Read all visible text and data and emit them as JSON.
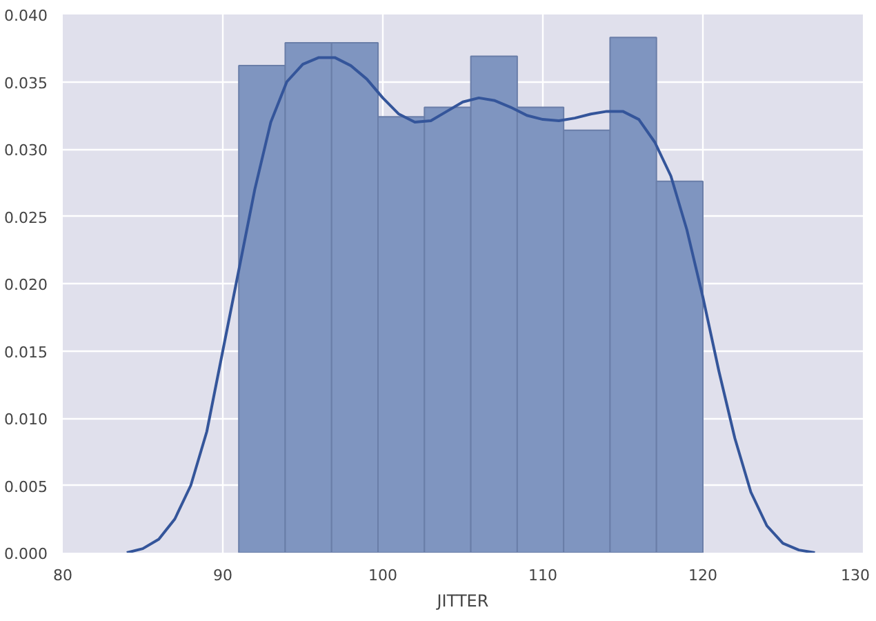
{
  "chart_data": {
    "type": "histogram",
    "xlabel": "JITTER",
    "xlim": [
      80,
      130
    ],
    "xticks": [
      80,
      90,
      100,
      110,
      120,
      130
    ],
    "ylim": [
      0,
      0.04
    ],
    "yticks": [
      {
        "value": 0,
        "label": "0.000"
      },
      {
        "value": 0.005,
        "label": "0.005"
      },
      {
        "value": 0.01,
        "label": "0.010"
      },
      {
        "value": 0.015,
        "label": "0.015"
      },
      {
        "value": 0.02,
        "label": "0.020"
      },
      {
        "value": 0.025,
        "label": "0.025"
      },
      {
        "value": 0.03,
        "label": "0.030"
      },
      {
        "value": 0.035,
        "label": "0.035"
      },
      {
        "value": 0.04,
        "label": "0.040"
      }
    ],
    "grid": true,
    "series": [
      {
        "color": "#7f95c0",
        "bins": [
          91,
          93.9,
          96.8,
          99.7,
          102.6,
          105.5,
          108.4,
          111.3,
          114.2,
          117.1,
          120
        ],
        "values": [
          0.0362,
          0.0379,
          0.0379,
          0.0324,
          0.0331,
          0.0369,
          0.0331,
          0.0314,
          0.0383,
          0.0276
        ]
      },
      {
        "type": "line",
        "color": "#34559a",
        "x": [
          84,
          85,
          86,
          87,
          88,
          89,
          90,
          91,
          92,
          93,
          94,
          95,
          96,
          97,
          98,
          99,
          100,
          101,
          102,
          103,
          104,
          105,
          106,
          107,
          108,
          109,
          110,
          111,
          112,
          113,
          114,
          115,
          116,
          117,
          118,
          119,
          120,
          121,
          122,
          123,
          124,
          125,
          126,
          127
        ],
        "values": [
          0,
          0.0003,
          0.001,
          0.0025,
          0.005,
          0.009,
          0.015,
          0.021,
          0.027,
          0.032,
          0.035,
          0.0363,
          0.0368,
          0.0368,
          0.0362,
          0.0352,
          0.0338,
          0.0326,
          0.032,
          0.0321,
          0.0328,
          0.0335,
          0.0338,
          0.0336,
          0.0331,
          0.0325,
          0.0322,
          0.0321,
          0.0323,
          0.0326,
          0.0328,
          0.0328,
          0.0322,
          0.0305,
          0.028,
          0.024,
          0.019,
          0.0135,
          0.0085,
          0.0045,
          0.002,
          0.0007,
          0.0002,
          0
        ]
      }
    ]
  }
}
